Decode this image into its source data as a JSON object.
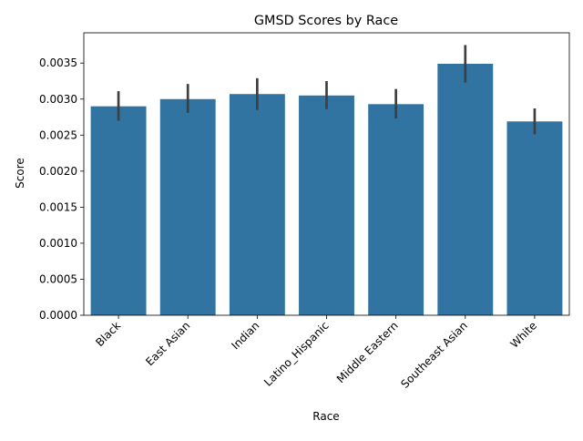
{
  "chart_data": {
    "type": "bar",
    "title": "GMSD Scores by Race",
    "xlabel": "Race",
    "ylabel": "Score",
    "categories": [
      "Black",
      "East Asian",
      "Indian",
      "Latino_Hispanic",
      "Middle Eastern",
      "Southeast Asian",
      "White"
    ],
    "values": [
      0.0029,
      0.003,
      0.00307,
      0.00305,
      0.00293,
      0.00349,
      0.00269
    ],
    "error_low": [
      0.0027,
      0.00281,
      0.00285,
      0.00286,
      0.00273,
      0.00323,
      0.00251
    ],
    "error_high": [
      0.00311,
      0.00321,
      0.00329,
      0.00325,
      0.00314,
      0.00375,
      0.00287
    ],
    "ylim": [
      0,
      0.00392
    ],
    "yticks": [
      "0.0000",
      "0.0005",
      "0.0010",
      "0.0015",
      "0.0020",
      "0.0025",
      "0.0030",
      "0.0035"
    ],
    "ytick_values": [
      0,
      0.0005,
      0.001,
      0.0015,
      0.002,
      0.0025,
      0.003,
      0.0035
    ],
    "grid": false,
    "bar_color": "#3274a1",
    "errorbar_color": "#3f3f3f"
  }
}
